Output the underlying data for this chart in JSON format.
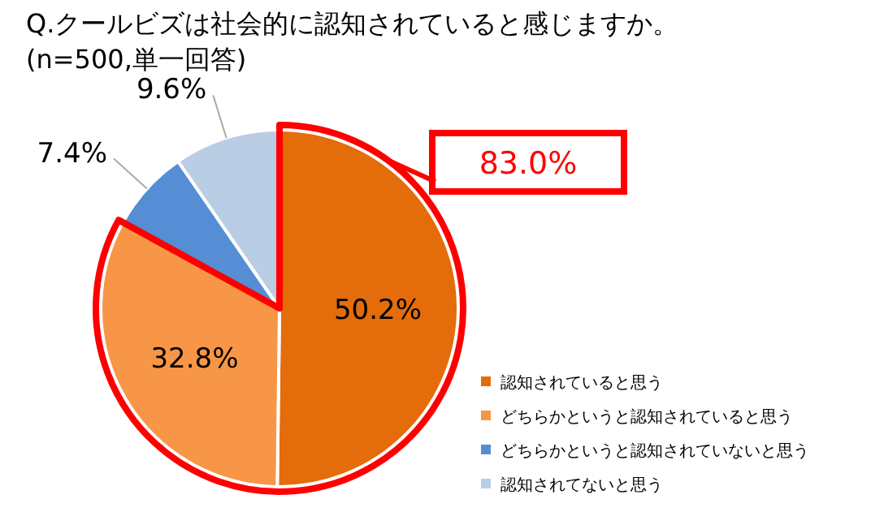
{
  "chart_data": {
    "type": "pie",
    "title": "Q.クールビズは社会的に認知されていると感じますか。",
    "subtitle": "(n=500,単一回答)",
    "categories": [
      "認知されていると思う",
      "どちらかというと認知されていると思う",
      "どちらかというと認知されていないと思う",
      "認知されてないと思う"
    ],
    "values": [
      50.2,
      32.8,
      7.4,
      9.6
    ],
    "colors": [
      "#e46c0a",
      "#f79646",
      "#558ed5",
      "#b9cde5"
    ],
    "value_labels": [
      "50.2%",
      "32.8%",
      "7.4%",
      "9.6%"
    ],
    "legend": "bottom right",
    "annotations": [
      "83.0%"
    ]
  }
}
